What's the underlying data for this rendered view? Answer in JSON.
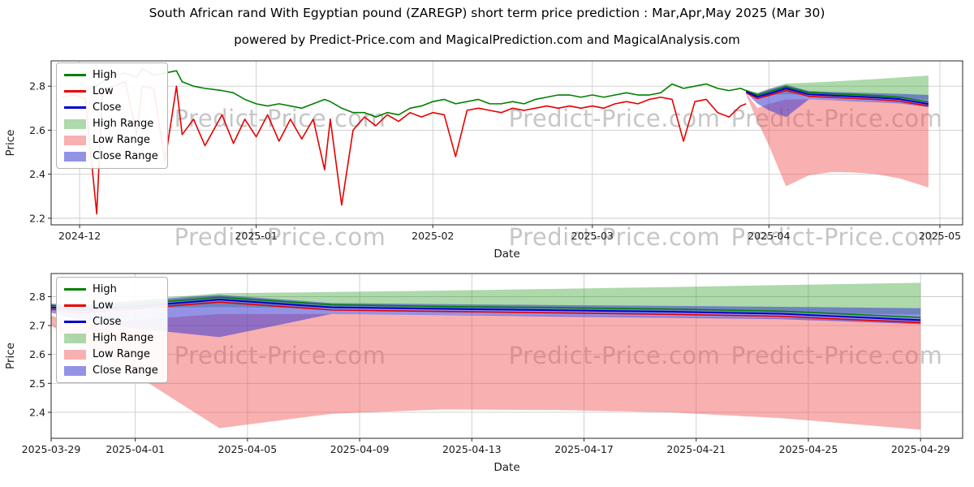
{
  "page": {
    "title": "South African rand With Egyptian pound (ZAREGP) short term price prediction : Mar,Apr,May 2025 (Mar 30)",
    "subtitle": "powered by Predict-Price.com and MagicalPrediction.com and MagicalAnalysis.com"
  },
  "watermark": {
    "text": "Predict-Price.com"
  },
  "colors": {
    "high": "#008000",
    "low": "#e60000",
    "close": "#0000cc",
    "high_range": "#33a02c",
    "low_range": "#f05050",
    "close_range": "#3a3ad1",
    "grid": "#cccccc",
    "spine": "#262626",
    "text": "#1a1a1a"
  },
  "legend": {
    "items": [
      {
        "label": "High",
        "swatch": "line",
        "color": "high"
      },
      {
        "label": "Low",
        "swatch": "line",
        "color": "low"
      },
      {
        "label": "Close",
        "swatch": "line",
        "color": "close"
      },
      {
        "label": "High Range",
        "swatch": "patch",
        "color": "high_range",
        "opacity": 0.4
      },
      {
        "label": "Low Range",
        "swatch": "patch",
        "color": "low_range",
        "opacity": 0.45
      },
      {
        "label": "Close Range",
        "swatch": "patch",
        "color": "close_range",
        "opacity": 0.55
      }
    ]
  },
  "chart_data": {
    "type": "line",
    "title": "South African rand With Egyptian pound (ZAREGP) short term price prediction : Mar,Apr,May 2025 (Mar 30)",
    "historical": {
      "dates": [
        "2024-11-28",
        "2024-11-30",
        "2024-12-02",
        "2024-12-04",
        "2024-12-05",
        "2024-12-07",
        "2024-12-09",
        "2024-12-11",
        "2024-12-12",
        "2024-12-14",
        "2024-12-16",
        "2024-12-18",
        "2024-12-19",
        "2024-12-21",
        "2024-12-23",
        "2024-12-26",
        "2024-12-28",
        "2024-12-30",
        "2025-01-01",
        "2025-01-03",
        "2025-01-05",
        "2025-01-07",
        "2025-01-09",
        "2025-01-11",
        "2025-01-13",
        "2025-01-14",
        "2025-01-16",
        "2025-01-18",
        "2025-01-20",
        "2025-01-22",
        "2025-01-24",
        "2025-01-26",
        "2025-01-28",
        "2025-01-30",
        "2025-02-01",
        "2025-02-03",
        "2025-02-05",
        "2025-02-07",
        "2025-02-09",
        "2025-02-11",
        "2025-02-13",
        "2025-02-15",
        "2025-02-17",
        "2025-02-19",
        "2025-02-21",
        "2025-02-23",
        "2025-02-25",
        "2025-02-27",
        "2025-03-01",
        "2025-03-03",
        "2025-03-05",
        "2025-03-07",
        "2025-03-09",
        "2025-03-11",
        "2025-03-13",
        "2025-03-15",
        "2025-03-17",
        "2025-03-19",
        "2025-03-21",
        "2025-03-23",
        "2025-03-25",
        "2025-03-27",
        "2025-03-28"
      ],
      "high": [
        2.77,
        2.78,
        2.78,
        2.8,
        2.82,
        2.85,
        2.86,
        2.84,
        2.88,
        2.85,
        2.86,
        2.87,
        2.82,
        2.8,
        2.79,
        2.78,
        2.77,
        2.74,
        2.72,
        2.71,
        2.72,
        2.71,
        2.7,
        2.72,
        2.74,
        2.73,
        2.7,
        2.68,
        2.68,
        2.66,
        2.68,
        2.67,
        2.7,
        2.71,
        2.73,
        2.74,
        2.72,
        2.73,
        2.74,
        2.72,
        2.72,
        2.73,
        2.72,
        2.74,
        2.75,
        2.76,
        2.76,
        2.75,
        2.76,
        2.75,
        2.76,
        2.77,
        2.76,
        2.76,
        2.77,
        2.81,
        2.79,
        2.8,
        2.81,
        2.79,
        2.78,
        2.79,
        2.78
      ],
      "low": [
        2.75,
        2.76,
        2.745,
        2.22,
        2.78,
        2.8,
        2.82,
        2.58,
        2.8,
        2.79,
        2.46,
        2.8,
        2.58,
        2.65,
        2.53,
        2.67,
        2.54,
        2.65,
        2.57,
        2.67,
        2.55,
        2.65,
        2.56,
        2.65,
        2.42,
        2.65,
        2.26,
        2.6,
        2.66,
        2.62,
        2.67,
        2.64,
        2.68,
        2.66,
        2.68,
        2.67,
        2.48,
        2.69,
        2.7,
        2.69,
        2.68,
        2.7,
        2.69,
        2.7,
        2.71,
        2.7,
        2.71,
        2.7,
        2.71,
        2.7,
        2.72,
        2.73,
        2.72,
        2.74,
        2.75,
        2.74,
        2.55,
        2.73,
        2.74,
        2.68,
        2.66,
        2.71,
        2.72
      ]
    },
    "prediction": {
      "dates": [
        "2025-03-28",
        "2025-03-30",
        "2025-04-01",
        "2025-04-04",
        "2025-04-08",
        "2025-04-12",
        "2025-04-16",
        "2025-04-20",
        "2025-04-24",
        "2025-04-29"
      ],
      "close": [
        2.775,
        2.752,
        2.766,
        2.79,
        2.763,
        2.758,
        2.753,
        2.748,
        2.741,
        2.719
      ],
      "high": [
        2.78,
        2.76,
        2.775,
        2.798,
        2.772,
        2.766,
        2.762,
        2.757,
        2.75,
        2.728
      ],
      "low": [
        2.77,
        2.744,
        2.758,
        2.781,
        2.754,
        2.749,
        2.744,
        2.739,
        2.732,
        2.71
      ],
      "high_range_upper": [
        2.785,
        2.77,
        2.788,
        2.812,
        2.816,
        2.821,
        2.827,
        2.833,
        2.84,
        2.848
      ],
      "high_range_lower": [
        2.775,
        2.752,
        2.76,
        2.764,
        2.76,
        2.757,
        2.754,
        2.75,
        2.745,
        2.738
      ],
      "low_range_upper": [
        2.77,
        2.7,
        2.72,
        2.74,
        2.74,
        2.737,
        2.734,
        2.73,
        2.726,
        2.718
      ],
      "low_range_lower": [
        2.76,
        2.64,
        2.53,
        2.345,
        2.395,
        2.41,
        2.408,
        2.4,
        2.38,
        2.34
      ],
      "close_range_upper": [
        2.78,
        2.768,
        2.786,
        2.806,
        2.778,
        2.774,
        2.771,
        2.768,
        2.765,
        2.76
      ],
      "close_range_lower": [
        2.77,
        2.72,
        2.69,
        2.66,
        2.74,
        2.736,
        2.731,
        2.727,
        2.722,
        2.705
      ]
    },
    "charts": [
      {
        "name": "history-with-forecast",
        "xlabel": "Date",
        "ylabel": "Price",
        "x_domain": [
          "2024-11-26",
          "2025-05-05"
        ],
        "ylim": [
          2.17,
          2.915
        ],
        "grid": true,
        "legend_position": "upper left",
        "x_ticks": [
          {
            "v": "2024-12-01",
            "label": "2024-12"
          },
          {
            "v": "2025-01-01",
            "label": "2025-01"
          },
          {
            "v": "2025-02-01",
            "label": "2025-02"
          },
          {
            "v": "2025-03-01",
            "label": "2025-03"
          },
          {
            "v": "2025-04-01",
            "label": "2025-04"
          },
          {
            "v": "2025-05-01",
            "label": "2025-05"
          }
        ],
        "y_ticks": [
          2.2,
          2.4,
          2.6,
          2.8
        ],
        "bands": [
          {
            "name": "high-range",
            "color": "high_range",
            "opacity": 0.4,
            "x": "prediction.dates",
            "upper": "prediction.high_range_upper",
            "lower": "prediction.high_range_lower"
          },
          {
            "name": "low-range",
            "color": "low_range",
            "opacity": 0.45,
            "x": "prediction.dates",
            "upper": "prediction.low_range_upper",
            "lower": "prediction.low_range_lower"
          },
          {
            "name": "close-range",
            "color": "close_range",
            "opacity": 0.55,
            "x": "prediction.dates",
            "upper": "prediction.close_range_upper",
            "lower": "prediction.close_range_lower"
          }
        ],
        "series": [
          {
            "name": "high",
            "color": "high",
            "width": 1.6,
            "x": "historical.dates",
            "y": "historical.high"
          },
          {
            "name": "low",
            "color": "low",
            "width": 1.6,
            "x": "historical.dates",
            "y": "historical.low"
          },
          {
            "name": "high-forecast",
            "color": "high",
            "width": 1.6,
            "x": "prediction.dates",
            "y": "prediction.high"
          },
          {
            "name": "low-forecast",
            "color": "low",
            "width": 1.6,
            "x": "prediction.dates",
            "y": "prediction.low"
          },
          {
            "name": "close-forecast",
            "color": "close",
            "width": 2,
            "x": "prediction.dates",
            "y": "prediction.close"
          }
        ]
      },
      {
        "name": "forecast-detail",
        "xlabel": "Date",
        "ylabel": "Price",
        "x_domain": [
          "2025-03-29",
          "2025-04-30T12:00:00"
        ],
        "ylim": [
          2.31,
          2.88
        ],
        "grid": true,
        "legend_position": "upper left",
        "x_ticks": [
          {
            "v": "2025-03-29",
            "label": "2025-03-29"
          },
          {
            "v": "2025-04-01",
            "label": "2025-04-01"
          },
          {
            "v": "2025-04-05",
            "label": "2025-04-05"
          },
          {
            "v": "2025-04-09",
            "label": "2025-04-09"
          },
          {
            "v": "2025-04-13",
            "label": "2025-04-13"
          },
          {
            "v": "2025-04-17",
            "label": "2025-04-17"
          },
          {
            "v": "2025-04-21",
            "label": "2025-04-21"
          },
          {
            "v": "2025-04-25",
            "label": "2025-04-25"
          },
          {
            "v": "2025-04-29",
            "label": "2025-04-29"
          }
        ],
        "y_ticks": [
          2.4,
          2.5,
          2.6,
          2.7,
          2.8
        ],
        "bands": [
          {
            "name": "high-range",
            "color": "high_range",
            "opacity": 0.4,
            "x": "prediction.dates",
            "upper": "prediction.high_range_upper",
            "lower": "prediction.high_range_lower"
          },
          {
            "name": "low-range",
            "color": "low_range",
            "opacity": 0.45,
            "x": "prediction.dates",
            "upper": "prediction.low_range_upper",
            "lower": "prediction.low_range_lower"
          },
          {
            "name": "close-range",
            "color": "close_range",
            "opacity": 0.55,
            "x": "prediction.dates",
            "upper": "prediction.close_range_upper",
            "lower": "prediction.close_range_lower"
          }
        ],
        "series": [
          {
            "name": "high",
            "color": "high",
            "width": 1.6,
            "x": "prediction.dates",
            "y": "prediction.high"
          },
          {
            "name": "low",
            "color": "low",
            "width": 1.6,
            "x": "prediction.dates",
            "y": "prediction.low"
          },
          {
            "name": "close",
            "color": "close",
            "width": 2,
            "x": "prediction.dates",
            "y": "prediction.close"
          }
        ]
      }
    ]
  }
}
